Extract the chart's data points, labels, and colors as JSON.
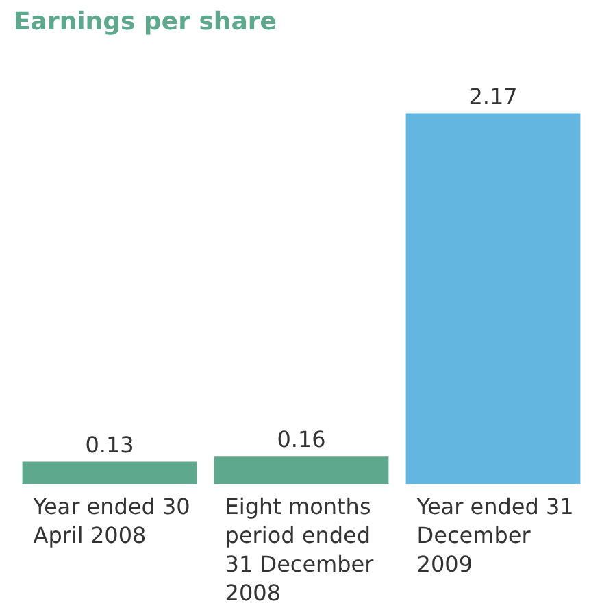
{
  "chart_data": {
    "type": "bar",
    "title": "Earnings per share",
    "categories": [
      "Year ended 30 April 2008",
      "Eight months period ended 31 December 2008",
      "Year ended 31 December 2009"
    ],
    "values": [
      0.13,
      0.16,
      2.17
    ],
    "colors": [
      "#5ea88e",
      "#5ea88e",
      "#62b6e0"
    ],
    "data_labels": true,
    "grid": false,
    "legend": false
  }
}
